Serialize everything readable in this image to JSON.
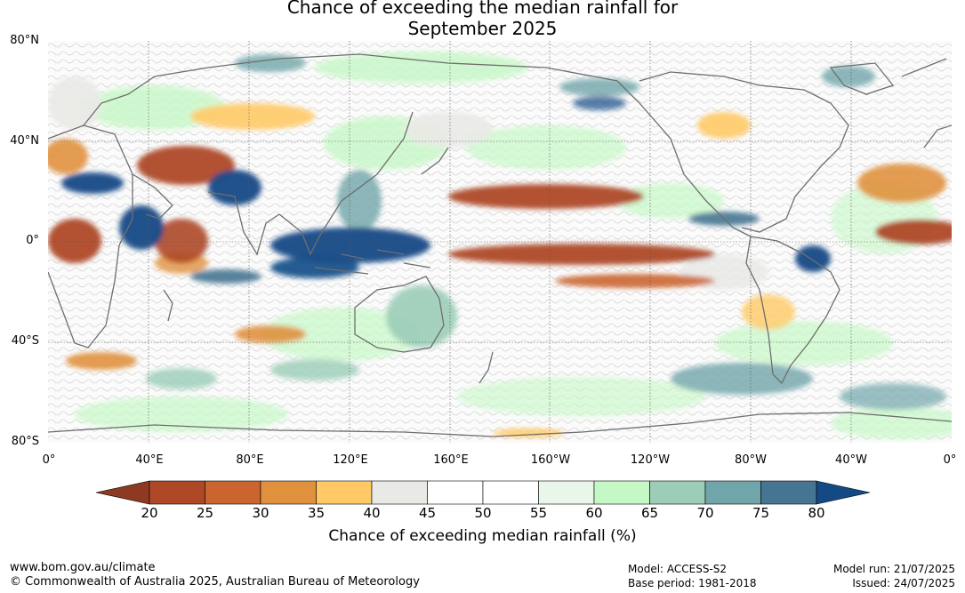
{
  "title": {
    "line1": "Chance of exceeding the median rainfall for",
    "line2": "September 2025"
  },
  "map": {
    "projection": "equirectangular",
    "central_longitude": "180",
    "lat_labels": [
      "80°N",
      "40°N",
      "0°",
      "40°S",
      "80°S"
    ],
    "lon_labels": [
      "0°",
      "40°E",
      "80°E",
      "120°E",
      "160°E",
      "160°W",
      "120°W",
      "80°W",
      "40°W",
      "0°"
    ],
    "grid": true,
    "coastline_color": "#6e6e6e"
  },
  "colorbar": {
    "ticks": [
      "20",
      "25",
      "30",
      "35",
      "40",
      "45",
      "50",
      "55",
      "60",
      "65",
      "70",
      "75",
      "80"
    ],
    "bins": [
      {
        "range": "<20",
        "color": "#8e3a22"
      },
      {
        "range": "20-25",
        "color": "#ae4827"
      },
      {
        "range": "25-30",
        "color": "#cb6530"
      },
      {
        "range": "30-35",
        "color": "#e0913e"
      },
      {
        "range": "35-40",
        "color": "#ffca66"
      },
      {
        "range": "40-45",
        "color": "#e9e9e6"
      },
      {
        "range": "45-50",
        "color": "#ffffff"
      },
      {
        "range": "50-55",
        "color": "#ffffff"
      },
      {
        "range": "55-60",
        "color": "#eaf6ea"
      },
      {
        "range": "60-65",
        "color": "#c6f8c6"
      },
      {
        "range": "65-70",
        "color": "#9bcdb7"
      },
      {
        "range": "70-75",
        "color": "#70a5a9"
      },
      {
        "range": "75-80",
        "color": "#457592"
      },
      {
        "range": ">80",
        "color": "#134a86"
      }
    ],
    "label": "Chance of exceeding median rainfall (%)"
  },
  "footer": {
    "website": "www.bom.gov.au/climate",
    "copyright": "© Commonwealth of Australia 2025, Australian Bureau of Meteorology",
    "model": "Model: ACCESS-S2",
    "base_period": "Base period: 1981-2018",
    "model_run": "Model run: 21/07/2025",
    "issued": "Issued: 24/07/2025"
  }
}
